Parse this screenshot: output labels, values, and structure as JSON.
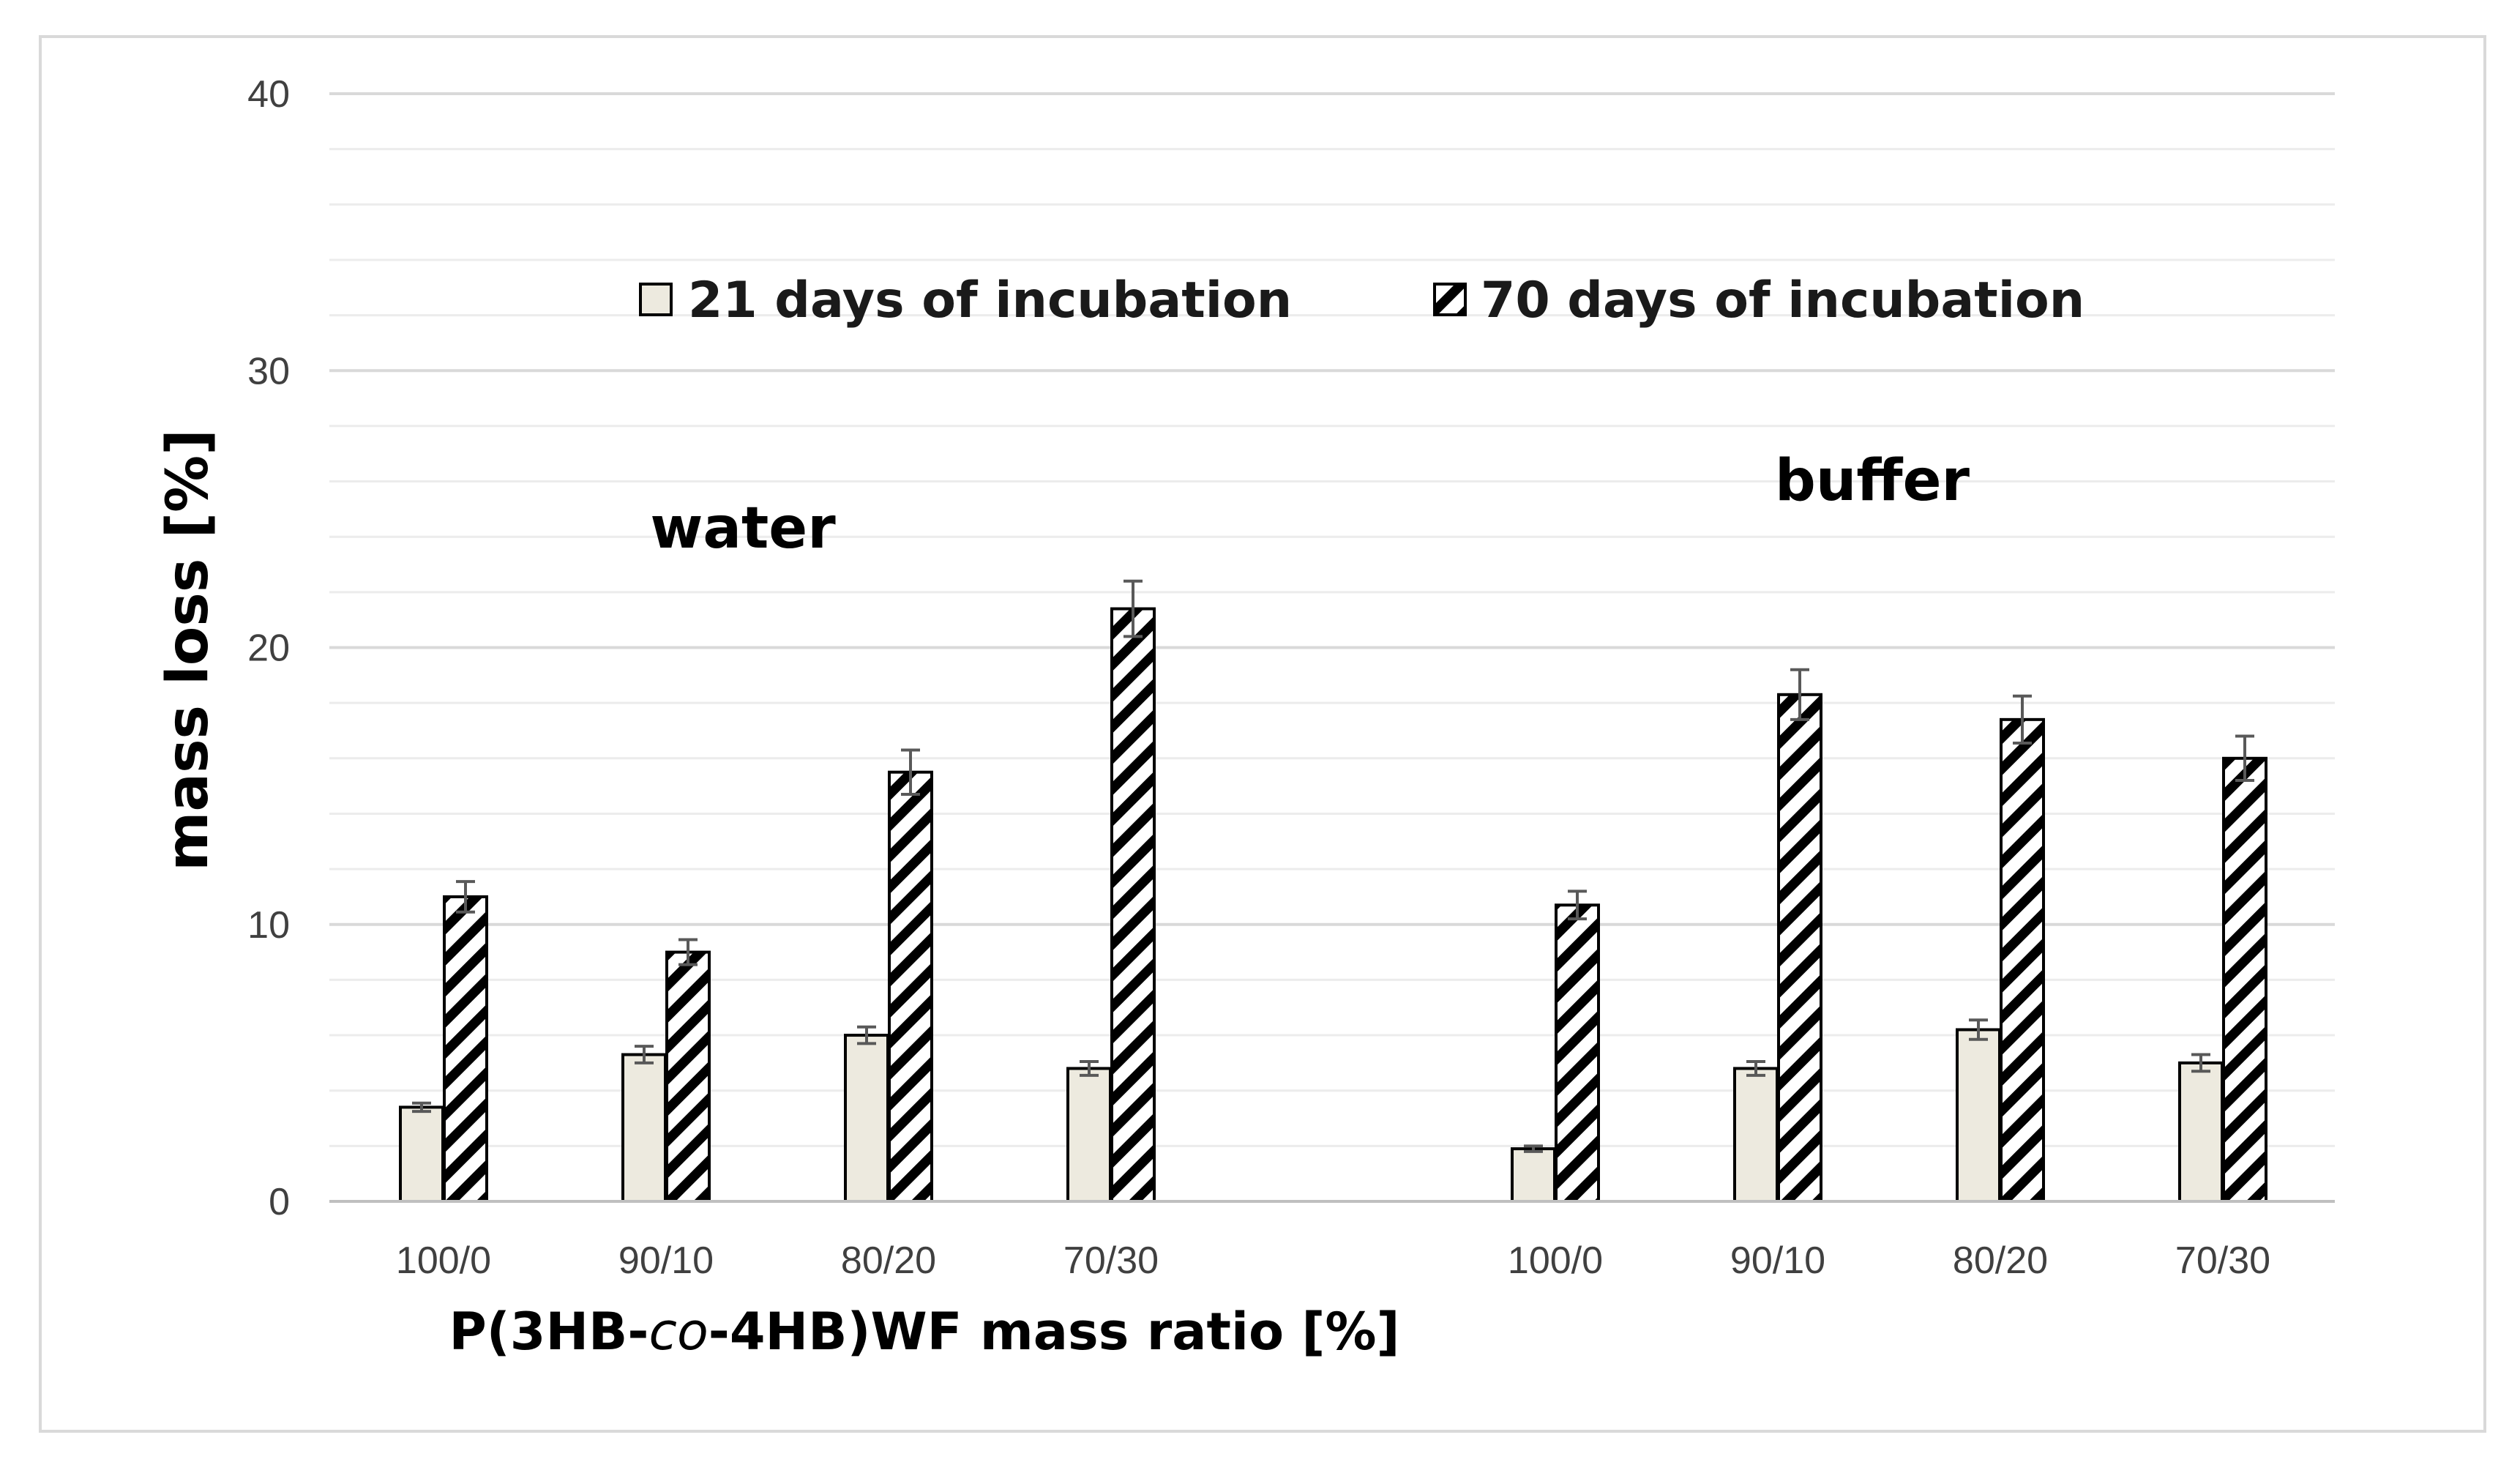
{
  "chart_data": {
    "type": "bar",
    "title": "",
    "xlabel": {
      "prefix": "P(3HB-",
      "italic": "co",
      "suffix": "-4HB)WF mass ratio [%]"
    },
    "ylabel": "mass loss  [%]",
    "ylim": [
      0,
      40
    ],
    "yticks": [
      0,
      10,
      20,
      30,
      40
    ],
    "ytick_labels": [
      "0",
      "10",
      "20",
      "30",
      "40"
    ],
    "minor_grid_step": 2,
    "groups": [
      {
        "name": "water",
        "categories": [
          "100/0",
          "90/10",
          "80/20",
          "70/30"
        ]
      },
      {
        "name": "buffer",
        "categories": [
          "100/0",
          "90/10",
          "80/20",
          "70/30"
        ]
      }
    ],
    "series": [
      {
        "name": "21 days of incubation",
        "pattern": "solid",
        "color": "#edeadf",
        "values": [
          3.4,
          5.3,
          6.0,
          4.8,
          1.9,
          4.8,
          6.2,
          5.0
        ],
        "errors": [
          0.15,
          0.3,
          0.3,
          0.25,
          0.1,
          0.25,
          0.35,
          0.3
        ]
      },
      {
        "name": "70 days of incubation",
        "pattern": "hatched",
        "color": "#ffffff",
        "values": [
          11.0,
          9.0,
          15.5,
          21.4,
          10.7,
          18.3,
          17.4,
          16.0
        ],
        "errors": [
          0.55,
          0.45,
          0.8,
          1.0,
          0.5,
          0.9,
          0.85,
          0.8
        ]
      }
    ],
    "legend_position": "top-center",
    "grid": true
  }
}
